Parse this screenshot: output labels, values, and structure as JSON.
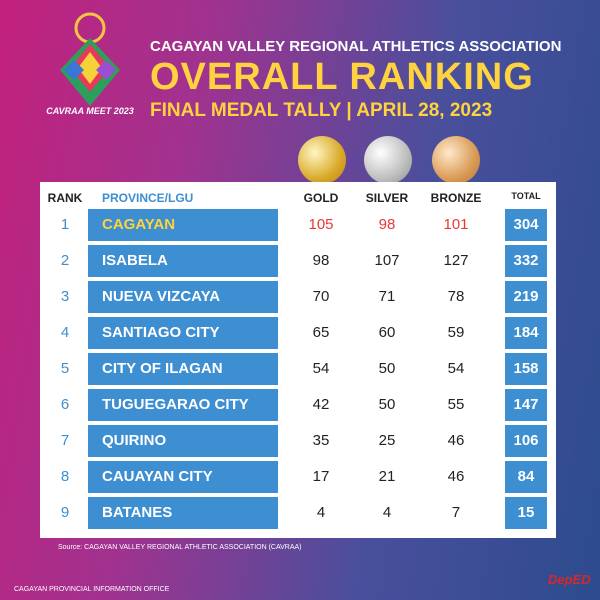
{
  "header": {
    "org": "CAGAYAN VALLEY REGIONAL ATHLETICS ASSOCIATION",
    "title": "OVERALL RANKING",
    "subtitle": "FINAL MEDAL TALLY | APRIL 28, 2023",
    "logo_text": "CAVRAA MEET 2023"
  },
  "table": {
    "columns": [
      "RANK",
      "PROVINCE/LGU",
      "GOLD",
      "SILVER",
      "BRONZE",
      "TOTAL"
    ],
    "rows": [
      [
        1,
        "CAGAYAN",
        105,
        98,
        101,
        304
      ],
      [
        2,
        "ISABELA",
        98,
        107,
        127,
        332
      ],
      [
        3,
        "NUEVA VIZCAYA",
        70,
        71,
        78,
        219
      ],
      [
        4,
        "SANTIAGO CITY",
        65,
        60,
        59,
        184
      ],
      [
        5,
        "CITY OF ILAGAN",
        54,
        50,
        54,
        158
      ],
      [
        6,
        "TUGUEGARAO CITY",
        42,
        50,
        55,
        147
      ],
      [
        7,
        "QUIRINO",
        35,
        25,
        46,
        106
      ],
      [
        8,
        "CAUAYAN CITY",
        17,
        21,
        46,
        84
      ],
      [
        9,
        "BATANES",
        4,
        4,
        7,
        15
      ]
    ]
  },
  "footer": {
    "source": "Source: CAGAYAN VALLEY REGIONAL ATHLETIC ASSOCIATION (CAVRAA)",
    "office": "CAGAYAN PROVINCIAL INFORMATION OFFICE",
    "deped": "DepED"
  }
}
